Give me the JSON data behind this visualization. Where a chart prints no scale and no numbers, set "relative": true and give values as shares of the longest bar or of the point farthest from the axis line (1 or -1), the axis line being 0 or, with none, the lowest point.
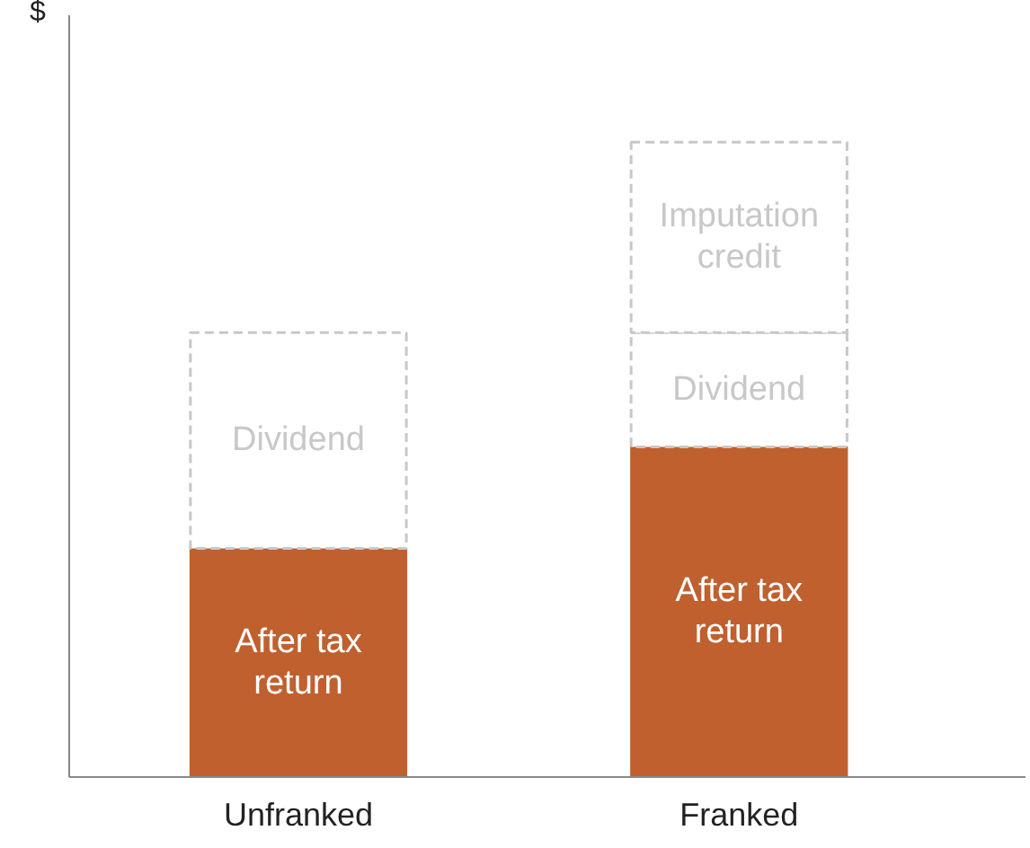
{
  "chart_data": {
    "type": "bar",
    "stacked": true,
    "relative": true,
    "ylabel": "$",
    "categories": [
      "Unfranked",
      "Franked"
    ],
    "series": [
      {
        "name": "After tax return",
        "color": "#c0602f",
        "line_style": "solid",
        "values": [
          0.36,
          0.52
        ]
      },
      {
        "name": "Dividend",
        "color": "#c8c8c8",
        "line_style": "dashed",
        "values": [
          0.34,
          0.18
        ]
      },
      {
        "name": "Imputation credit",
        "color": "#c8c8c8",
        "line_style": "dashed",
        "values": [
          null,
          0.3
        ]
      }
    ],
    "grid": false
  }
}
